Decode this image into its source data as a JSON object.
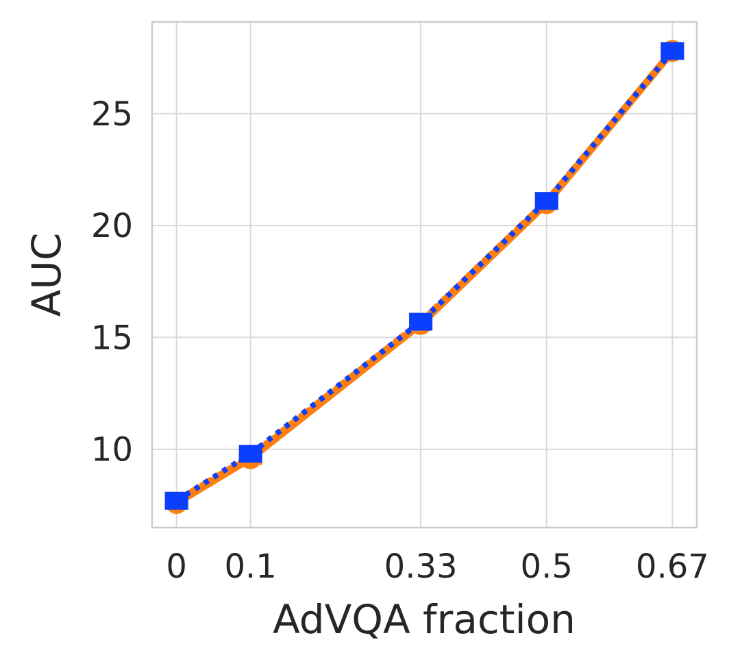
{
  "chart_data": {
    "type": "line",
    "xlabel": "AdVQA fraction",
    "ylabel": "AUC",
    "x": [
      0,
      0.1,
      0.33,
      0.5,
      0.67
    ],
    "x_tick_labels": [
      "0",
      "0.1",
      "0.33",
      "0.5",
      "0.67"
    ],
    "y_ticks": [
      10,
      15,
      20,
      25
    ],
    "y_tick_labels": [
      "10",
      "15",
      "20",
      "25"
    ],
    "xlim": [
      -0.033,
      0.703
    ],
    "ylim": [
      6.5,
      29.1
    ],
    "grid": true,
    "legend": "none",
    "series": [
      {
        "values": [
          7.6,
          9.6,
          15.6,
          21.0,
          27.8
        ],
        "color": "#ff7f0e",
        "style": "solid",
        "marker": "circle"
      },
      {
        "values": [
          7.7,
          9.7,
          15.7,
          21.1,
          27.8
        ],
        "color": "#ff7f0e",
        "style": "dashed",
        "marker": "square"
      },
      {
        "values": [
          7.7,
          9.8,
          15.7,
          21.1,
          27.8
        ],
        "color": "#0a3fff",
        "style": "dotted",
        "marker": "square"
      }
    ]
  }
}
